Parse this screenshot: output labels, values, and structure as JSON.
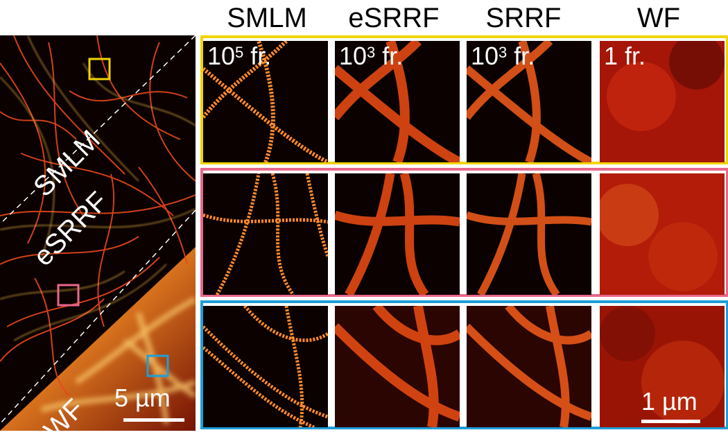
{
  "column_headers": [
    "SMLM",
    "eSRRF",
    "SRRF",
    "WF"
  ],
  "frame_counts": [
    {
      "base": "10",
      "exp": "5",
      "suffix": " fr."
    },
    {
      "base": "10",
      "exp": "3",
      "suffix": " fr."
    },
    {
      "base": "10",
      "exp": "3",
      "suffix": " fr."
    },
    {
      "base": "",
      "exp": "",
      "suffix": "1 fr."
    }
  ],
  "overview_labels": {
    "smlm": "SMLM",
    "esrrf": "eSRRF",
    "wf": "WF"
  },
  "overview_scale": "5 µm",
  "zoom_scale": "1 µm",
  "roi_colors": {
    "yellow": "#f2d400",
    "pink": "#e8678a",
    "blue": "#1e9fd8"
  }
}
